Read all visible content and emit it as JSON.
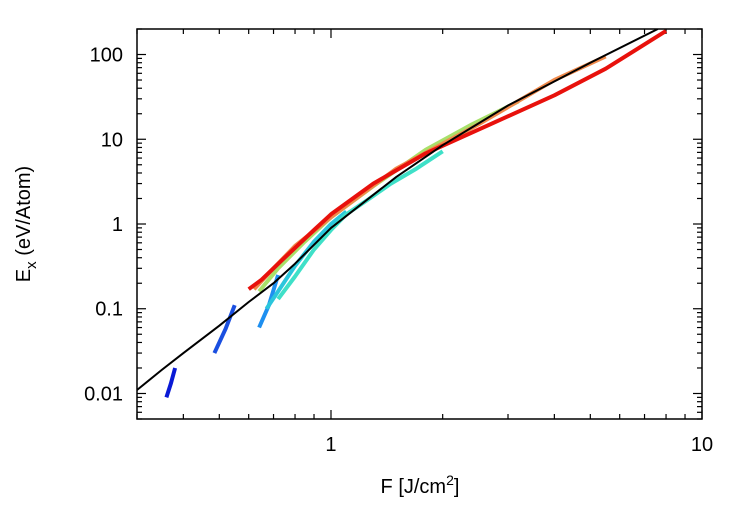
{
  "chart_data": {
    "type": "line",
    "title": "",
    "xlabel": "F [J/cm",
    "xlabel_sup": "2",
    "xlabel_tail": "]",
    "ylabel": "E",
    "ylabel_sub": "x",
    "ylabel_tail": " (eV/Atom)",
    "xscale": "log",
    "yscale": "log",
    "xlim": [
      0.3,
      10
    ],
    "ylim": [
      0.005,
      200
    ],
    "xticks": [
      {
        "value": 1,
        "label": "1"
      },
      {
        "value": 10,
        "label": "10"
      }
    ],
    "yticks": [
      {
        "value": 0.01,
        "label": "0.01"
      },
      {
        "value": 0.1,
        "label": "0.1"
      },
      {
        "value": 1,
        "label": "1"
      },
      {
        "value": 10,
        "label": "10"
      },
      {
        "value": 100,
        "label": "100"
      }
    ],
    "grid": false,
    "legend": "none",
    "series": [
      {
        "color": "#000000",
        "width": 2,
        "x": [
          0.3,
          0.35,
          0.4,
          0.5,
          0.6,
          0.7,
          0.8,
          1.0,
          1.5,
          2.0,
          3.0,
          5.0,
          7.6
        ],
        "y": [
          0.011,
          0.019,
          0.03,
          0.063,
          0.12,
          0.2,
          0.34,
          0.9,
          3.6,
          8.5,
          25,
          80,
          200
        ]
      },
      {
        "color": "#0a1ad6",
        "width": 4,
        "x": [
          0.36,
          0.37,
          0.38
        ],
        "y": [
          0.009,
          0.013,
          0.02
        ]
      },
      {
        "color": "#1a4fe0",
        "width": 4,
        "x": [
          0.485,
          0.52,
          0.55
        ],
        "y": [
          0.03,
          0.058,
          0.11
        ]
      },
      {
        "color": "#1e8ff0",
        "width": 4,
        "x": [
          0.64,
          0.68,
          0.72
        ],
        "y": [
          0.06,
          0.11,
          0.25
        ]
      },
      {
        "color": "#2bc6dc",
        "width": 4,
        "x": [
          0.67,
          0.72,
          0.8,
          0.9,
          1.0,
          1.1
        ],
        "y": [
          0.1,
          0.16,
          0.32,
          0.62,
          1.0,
          1.4
        ]
      },
      {
        "color": "#3fe0c8",
        "width": 4,
        "x": [
          0.72,
          0.8,
          0.9,
          1.0,
          1.1,
          1.25,
          1.45,
          1.7,
          2.0
        ],
        "y": [
          0.13,
          0.24,
          0.5,
          0.85,
          1.3,
          1.9,
          3.0,
          4.5,
          7.2
        ]
      },
      {
        "color": "#a8e06a",
        "width": 4,
        "x": [
          0.64,
          0.72,
          0.85,
          1.0,
          1.3,
          1.8,
          2.4,
          3.2
        ],
        "y": [
          0.16,
          0.3,
          0.62,
          1.2,
          2.8,
          7.5,
          15,
          28
        ]
      },
      {
        "color": "#f08a4b",
        "width": 4,
        "x": [
          0.62,
          0.7,
          0.8,
          1.0,
          1.5,
          2.5,
          4.0,
          5.5
        ],
        "y": [
          0.17,
          0.3,
          0.55,
          1.2,
          4.5,
          15,
          50,
          95
        ]
      },
      {
        "color": "#e8110c",
        "width": 4,
        "x": [
          0.6,
          0.65,
          0.75,
          0.9,
          1.0,
          1.3,
          1.8,
          2.5,
          4.0,
          5.5,
          8.0
        ],
        "y": [
          0.17,
          0.22,
          0.4,
          0.85,
          1.3,
          3.0,
          6.8,
          13,
          33,
          68,
          190
        ]
      }
    ]
  }
}
